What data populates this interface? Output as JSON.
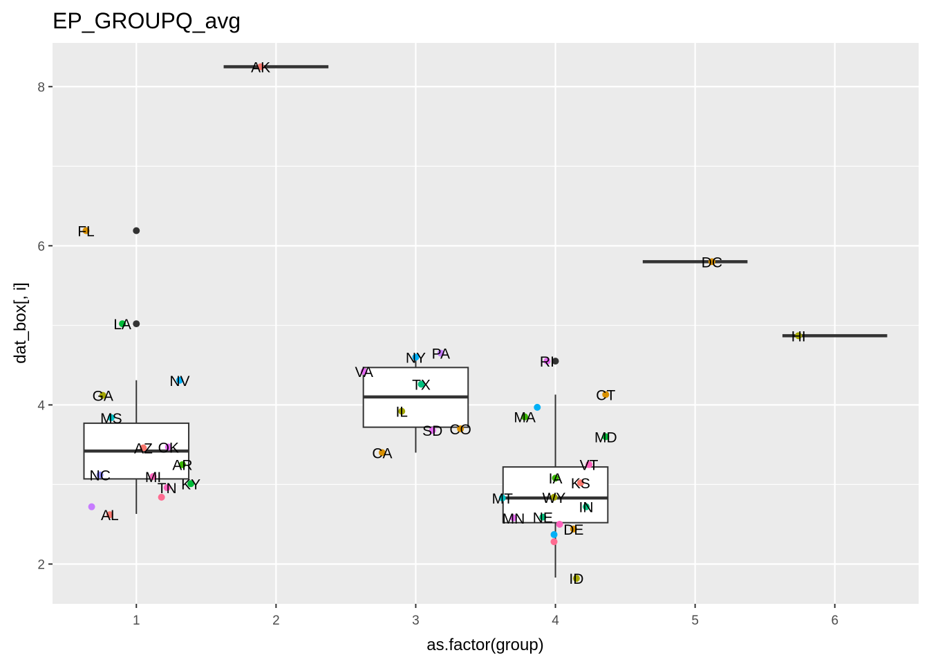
{
  "chart_data": {
    "type": "boxplot",
    "title": "EP_GROUPQ_avg",
    "xlabel": "as.factor(group)",
    "ylabel": "dat_box[, i]",
    "xlim": [
      0.4,
      6.6
    ],
    "ylim": [
      1.5,
      8.55
    ],
    "x_ticks": [
      1,
      2,
      3,
      4,
      5,
      6
    ],
    "y_ticks": [
      2,
      4,
      6,
      8
    ],
    "grid": true,
    "boxes": [
      {
        "group": 1,
        "q1": 3.07,
        "median": 3.42,
        "q3": 3.77,
        "whisker_low": 2.63,
        "whisker_high": 4.31,
        "outliers": [
          5.02,
          6.19
        ]
      },
      {
        "group": 2,
        "q1": 8.25,
        "median": 8.25,
        "q3": 8.25,
        "whisker_low": 8.25,
        "whisker_high": 8.25,
        "outliers": []
      },
      {
        "group": 3,
        "q1": 3.72,
        "median": 4.1,
        "q3": 4.47,
        "whisker_low": 3.4,
        "whisker_high": 4.62,
        "outliers": []
      },
      {
        "group": 4,
        "q1": 2.52,
        "median": 2.83,
        "q3": 3.22,
        "whisker_low": 1.83,
        "whisker_high": 4.13,
        "outliers": [
          4.55
        ]
      },
      {
        "group": 5,
        "q1": 5.8,
        "median": 5.8,
        "q3": 5.8,
        "whisker_low": 5.8,
        "whisker_high": 5.8,
        "outliers": []
      },
      {
        "group": 6,
        "q1": 4.87,
        "median": 4.87,
        "q3": 4.87,
        "whisker_low": 4.87,
        "whisker_high": 4.87,
        "outliers": []
      }
    ],
    "points": [
      {
        "label": "FL",
        "x": 0.64,
        "y": 6.19,
        "color": "#D89000"
      },
      {
        "label": "LA",
        "x": 0.9,
        "y": 5.02,
        "color": "#00BA38"
      },
      {
        "label": "NV",
        "x": 1.31,
        "y": 4.31,
        "color": "#00B0F6"
      },
      {
        "label": "GA",
        "x": 0.76,
        "y": 4.12,
        "color": "#A3A500"
      },
      {
        "label": "MS",
        "x": 0.82,
        "y": 3.84,
        "color": "#00BFC4"
      },
      {
        "label": "AZ",
        "x": 1.05,
        "y": 3.46,
        "color": "#F8766D"
      },
      {
        "label": "OK",
        "x": 1.23,
        "y": 3.47,
        "color": "#E76BF3"
      },
      {
        "label": "AR",
        "x": 1.33,
        "y": 3.25,
        "color": "#39B600"
      },
      {
        "label": "NC",
        "x": 0.74,
        "y": 3.12,
        "color": "#9590FF"
      },
      {
        "label": "MI",
        "x": 1.12,
        "y": 3.1,
        "color": "#FF62BC"
      },
      {
        "label": "TN",
        "x": 1.22,
        "y": 2.96,
        "color": "#FF62BC"
      },
      {
        "label": "KY",
        "x": 1.39,
        "y": 3.01,
        "color": "#00BA38"
      },
      {
        "label": "",
        "x": 1.18,
        "y": 2.84,
        "color": "#FF6C91"
      },
      {
        "label": "",
        "x": 0.68,
        "y": 2.72,
        "color": "#C77CFF"
      },
      {
        "label": "AL",
        "x": 0.81,
        "y": 2.62,
        "color": "#F8766D"
      },
      {
        "label": "AK",
        "x": 1.89,
        "y": 8.25,
        "color": "#F8766D"
      },
      {
        "label": "NY",
        "x": 3.0,
        "y": 4.6,
        "color": "#00B0F6"
      },
      {
        "label": "PA",
        "x": 3.18,
        "y": 4.65,
        "color": "#C77CFF"
      },
      {
        "label": "VA",
        "x": 2.63,
        "y": 4.42,
        "color": "#E76BF3"
      },
      {
        "label": "TX",
        "x": 3.04,
        "y": 4.26,
        "color": "#00BF7D"
      },
      {
        "label": "IL",
        "x": 2.9,
        "y": 3.92,
        "color": "#A3A500"
      },
      {
        "label": "SD",
        "x": 3.12,
        "y": 3.68,
        "color": "#E76BF3"
      },
      {
        "label": "CO",
        "x": 3.32,
        "y": 3.7,
        "color": "#D89000"
      },
      {
        "label": "CA",
        "x": 2.76,
        "y": 3.4,
        "color": "#D89000"
      },
      {
        "label": "RI",
        "x": 3.94,
        "y": 4.55,
        "color": "#E76BF3"
      },
      {
        "label": "",
        "x": 3.87,
        "y": 3.97,
        "color": "#00B0F6"
      },
      {
        "label": "MA",
        "x": 3.78,
        "y": 3.85,
        "color": "#39B600"
      },
      {
        "label": "CT",
        "x": 4.36,
        "y": 4.13,
        "color": "#D89000"
      },
      {
        "label": "MD",
        "x": 4.36,
        "y": 3.6,
        "color": "#00BA38"
      },
      {
        "label": "VT",
        "x": 4.24,
        "y": 3.25,
        "color": "#FF62BC"
      },
      {
        "label": "IA",
        "x": 4.0,
        "y": 3.08,
        "color": "#39B600"
      },
      {
        "label": "KS",
        "x": 4.18,
        "y": 3.02,
        "color": "#F8766D"
      },
      {
        "label": "MT",
        "x": 3.62,
        "y": 2.83,
        "color": "#00BFC4"
      },
      {
        "label": "WY",
        "x": 3.99,
        "y": 2.84,
        "color": "#A3A500"
      },
      {
        "label": "IN",
        "x": 4.22,
        "y": 2.72,
        "color": "#00BF7D"
      },
      {
        "label": "MN",
        "x": 3.7,
        "y": 2.58,
        "color": "#E76BF3"
      },
      {
        "label": "NE",
        "x": 3.91,
        "y": 2.59,
        "color": "#00BF7D"
      },
      {
        "label": "",
        "x": 4.03,
        "y": 2.5,
        "color": "#FF62BC"
      },
      {
        "label": "DE",
        "x": 4.13,
        "y": 2.44,
        "color": "#D89000"
      },
      {
        "label": "",
        "x": 3.99,
        "y": 2.37,
        "color": "#00B0F6"
      },
      {
        "label": "",
        "x": 3.99,
        "y": 2.28,
        "color": "#FF6C91"
      },
      {
        "label": "ID",
        "x": 4.15,
        "y": 1.82,
        "color": "#A3A500"
      },
      {
        "label": "DC",
        "x": 5.12,
        "y": 5.8,
        "color": "#D89000"
      },
      {
        "label": "HI",
        "x": 5.74,
        "y": 4.87,
        "color": "#A3A500"
      }
    ]
  }
}
